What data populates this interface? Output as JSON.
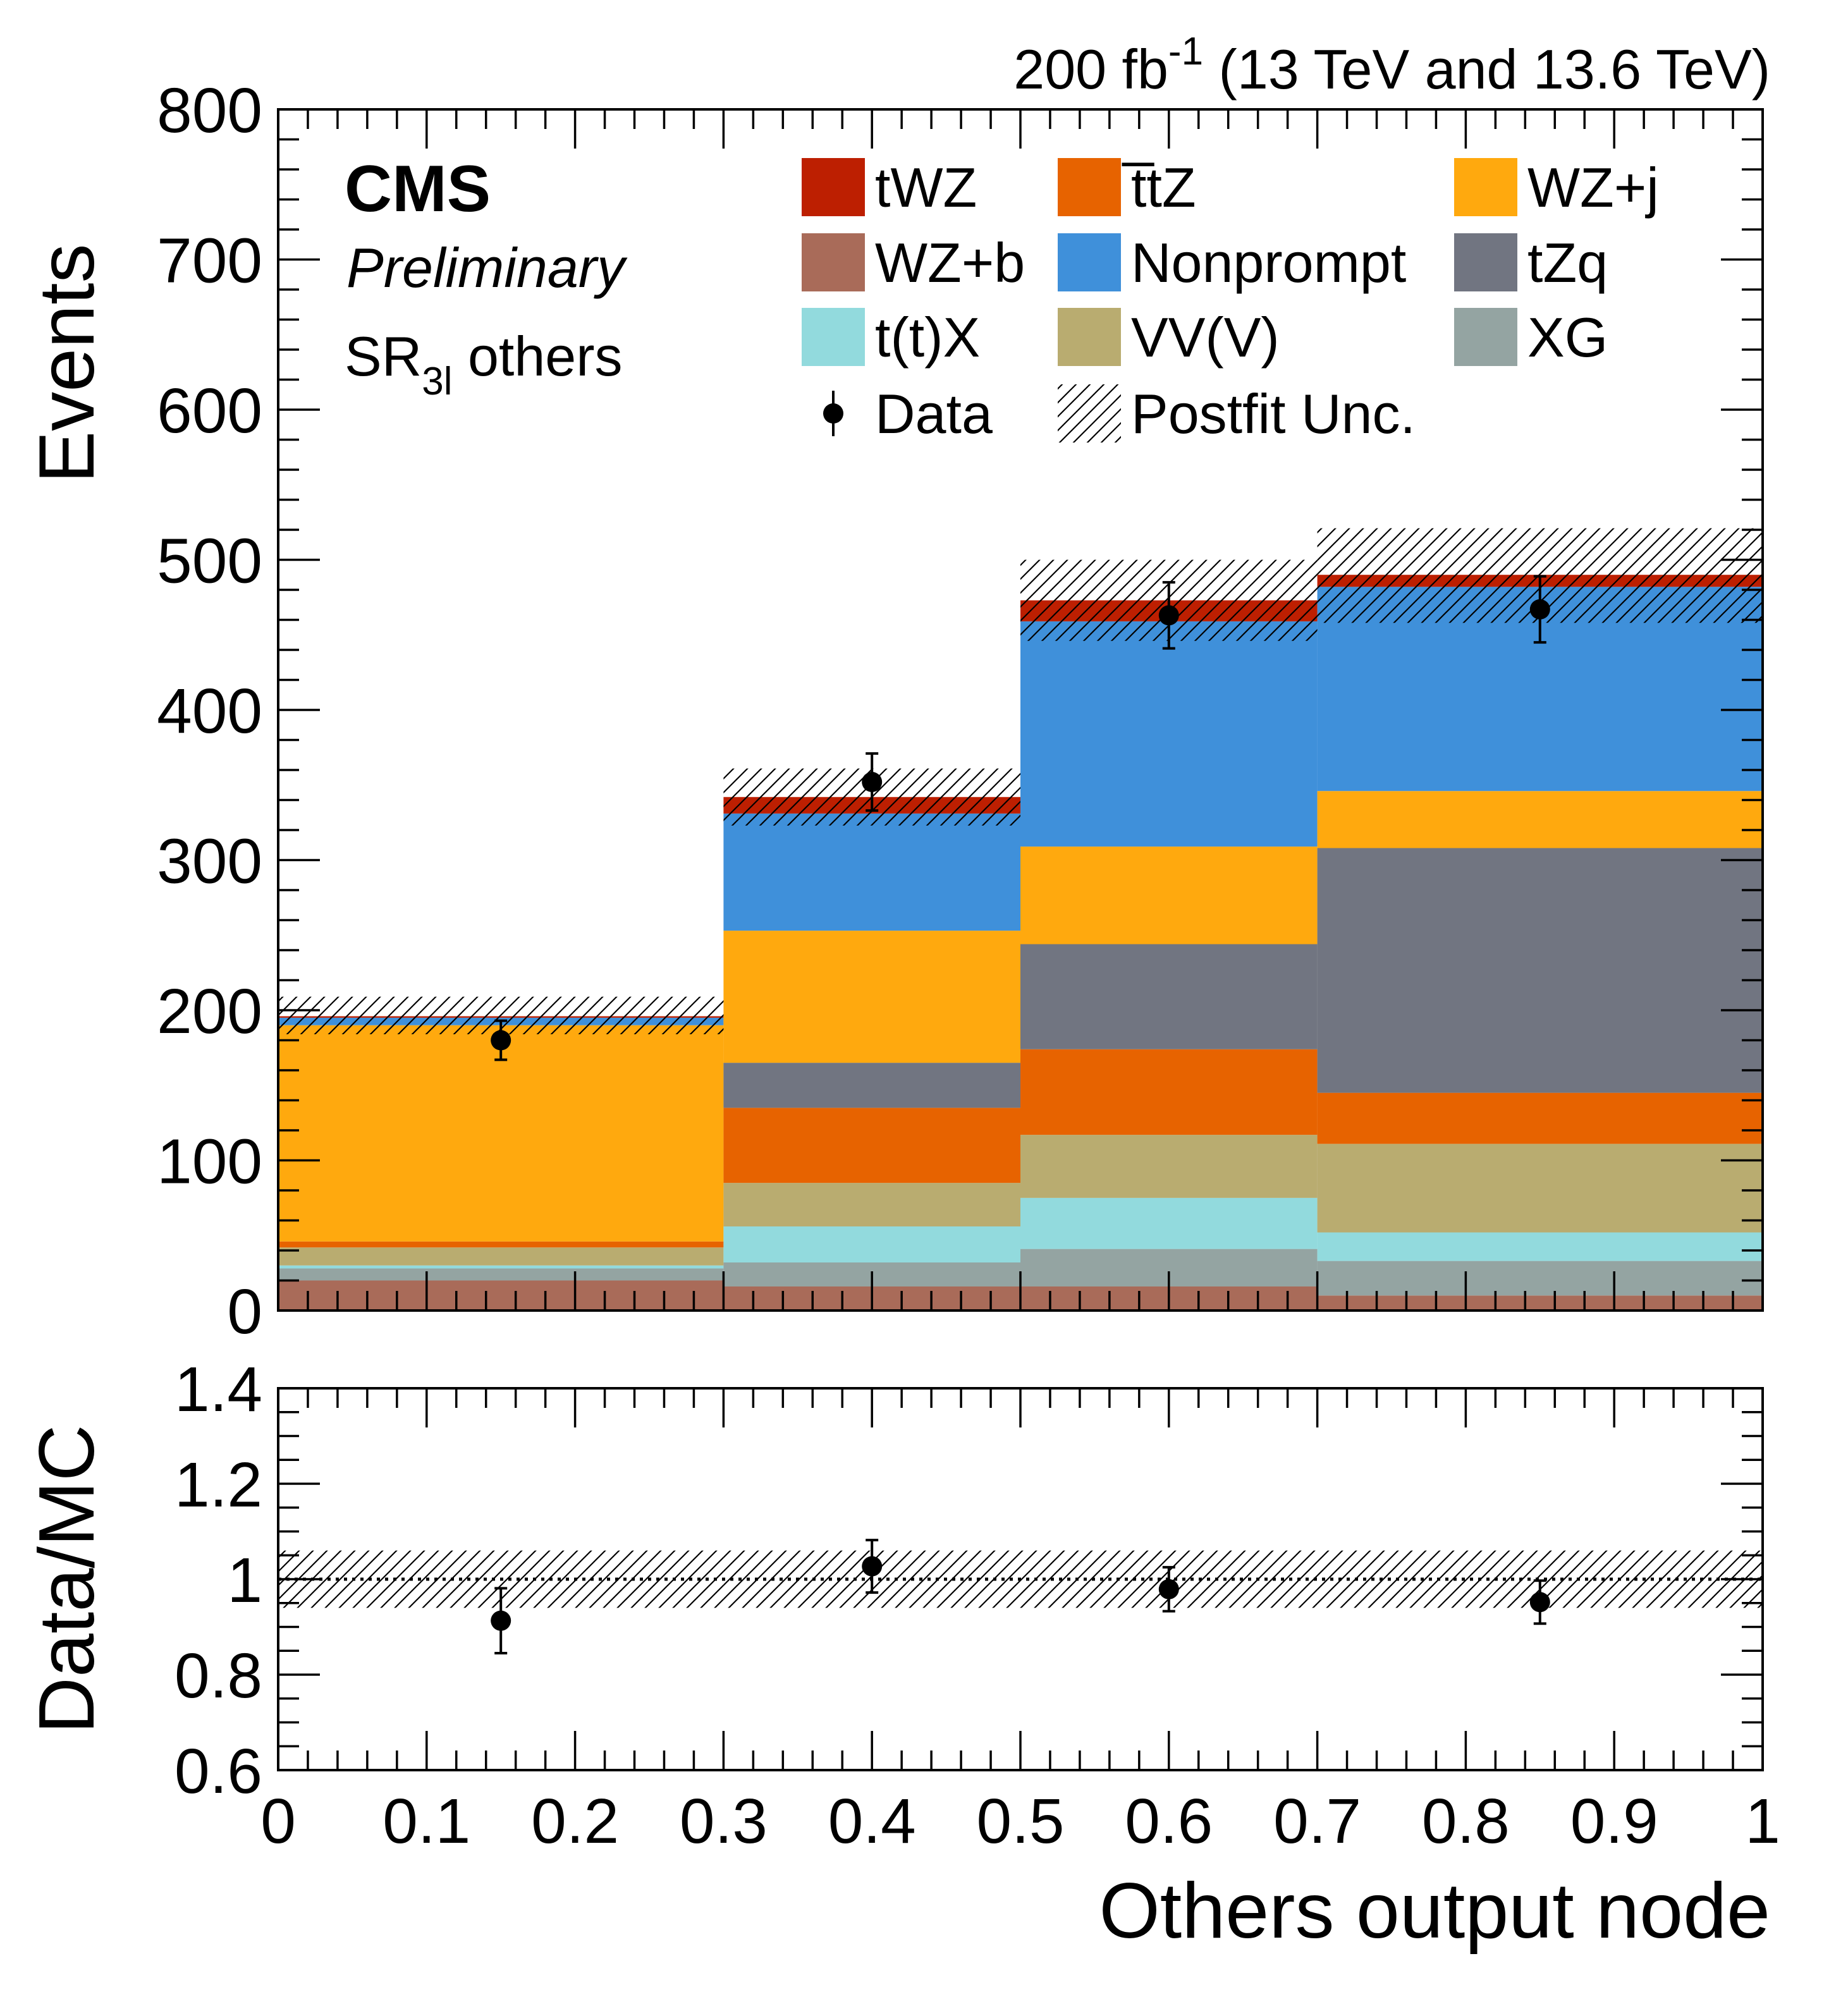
{
  "chart_data": {
    "type": "stacked-histogram-with-ratio",
    "lumi_label": "200 fb",
    "lumi_exp": "-1",
    "lumi_rest": " (13 TeV and 13.6 TeV)",
    "experiment": "CMS",
    "status": "Preliminary",
    "region_base": "SR",
    "region_sub": "3l",
    "region_rest": " others",
    "xlabel": "Others output node",
    "ylabel_top": "Events",
    "ylabel_bottom": "Data/MC",
    "xlim": [
      0,
      1
    ],
    "ylim_top": [
      0,
      800
    ],
    "ylim_bottom": [
      0.6,
      1.4
    ],
    "x_ticks": [
      "0",
      "0.1",
      "0.2",
      "0.3",
      "0.4",
      "0.5",
      "0.6",
      "0.7",
      "0.8",
      "0.9",
      "1"
    ],
    "y_ticks_top": [
      "0",
      "100",
      "200",
      "300",
      "400",
      "500",
      "600",
      "700",
      "800"
    ],
    "y_ticks_bottom": [
      "0.6",
      "0.8",
      "1",
      "1.2",
      "1.4"
    ],
    "bin_edges": [
      0,
      0.3,
      0.5,
      0.7,
      1.0
    ],
    "series": [
      {
        "name": "WZ+b",
        "color": "#a96b59",
        "values": [
          20,
          16,
          16,
          10
        ]
      },
      {
        "name": "XG",
        "color": "#94a4a2",
        "values": [
          8,
          16,
          25,
          23
        ]
      },
      {
        "name": "t(t)X",
        "color": "#92dadd",
        "values": [
          2,
          24,
          34,
          19
        ]
      },
      {
        "name": "VV(V)",
        "color": "#b9ac70",
        "values": [
          12,
          29,
          42,
          59
        ]
      },
      {
        "name": "t̅tZ",
        "color": "#e76300",
        "values": [
          4,
          50,
          57,
          34
        ]
      },
      {
        "name": "tZq",
        "color": "#717581",
        "values": [
          0,
          30,
          70,
          163
        ]
      },
      {
        "name": "WZ+j",
        "color": "#ffa90e",
        "values": [
          144,
          88,
          65,
          38
        ]
      },
      {
        "name": "Nonprompt",
        "color": "#3f90da",
        "values": [
          5,
          78,
          150,
          136
        ]
      },
      {
        "name": "tWZ",
        "color": "#bd1f01",
        "values": [
          1,
          11,
          14,
          8
        ]
      }
    ],
    "legend_order": [
      "tWZ",
      "t̅tZ",
      "WZ+j",
      "WZ+b",
      "Nonprompt",
      "tZq",
      "t(t)X",
      "VV(V)",
      "XG"
    ],
    "data_label": "Data",
    "unc_label": "Postfit Unc.",
    "data": {
      "x": [
        0.15,
        0.4,
        0.6,
        0.85
      ],
      "y": [
        180,
        352,
        463,
        467
      ],
      "yerr": [
        13,
        19,
        22,
        22
      ]
    },
    "postfit_unc": {
      "low": [
        184,
        323,
        446,
        458
      ],
      "high": [
        209,
        361,
        500,
        521
      ]
    },
    "ratio": {
      "x": [
        0.15,
        0.4,
        0.6,
        0.85
      ],
      "y": [
        0.913,
        1.027,
        0.979,
        0.952
      ],
      "yerr": [
        0.068,
        0.055,
        0.046,
        0.045
      ],
      "unc_low": [
        0.94,
        0.94,
        0.94,
        0.94
      ],
      "unc_high": [
        1.06,
        1.06,
        1.06,
        1.06
      ]
    }
  }
}
